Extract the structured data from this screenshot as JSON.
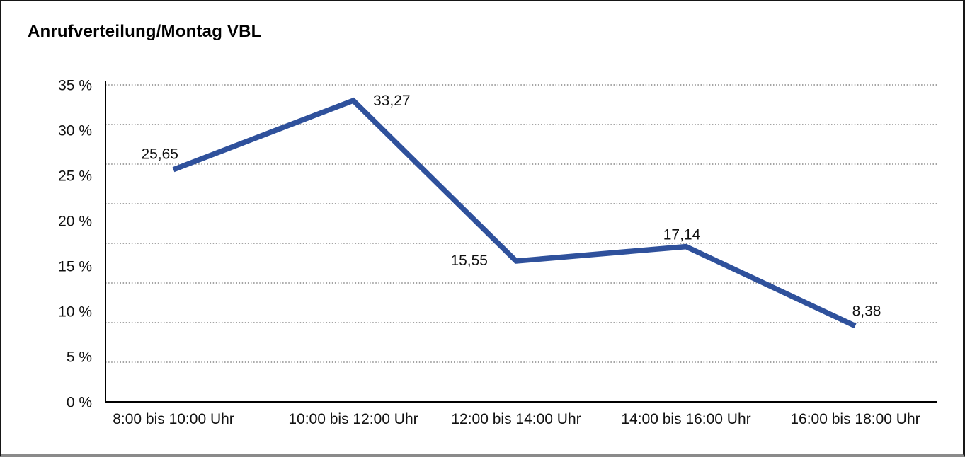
{
  "chart_data": {
    "type": "line",
    "title": "Anrufverteilung/Montag VBL",
    "categories": [
      "8:00 bis 10:00 Uhr",
      "10:00 bis 12:00 Uhr",
      "12:00 bis 14:00 Uhr",
      "14:00 bis 16:00 Uhr",
      "16:00 bis 18:00 Uhr"
    ],
    "values": [
      25.65,
      33.27,
      15.55,
      17.14,
      8.38
    ],
    "data_labels": [
      "25,65",
      "33,27",
      "15,55",
      "17,14",
      "8,38"
    ],
    "y_ticks": [
      "35 %",
      "30 %",
      "25 %",
      "20 %",
      "15 %",
      "10 %",
      "5 %",
      "0 %"
    ],
    "ylim": [
      0,
      35
    ],
    "y_tick_step": 5,
    "xlabel": "",
    "ylabel": "",
    "legend": "none",
    "grid": "horizontal-dotted",
    "line_color": "#2F519C",
    "text_color": "#111111"
  }
}
